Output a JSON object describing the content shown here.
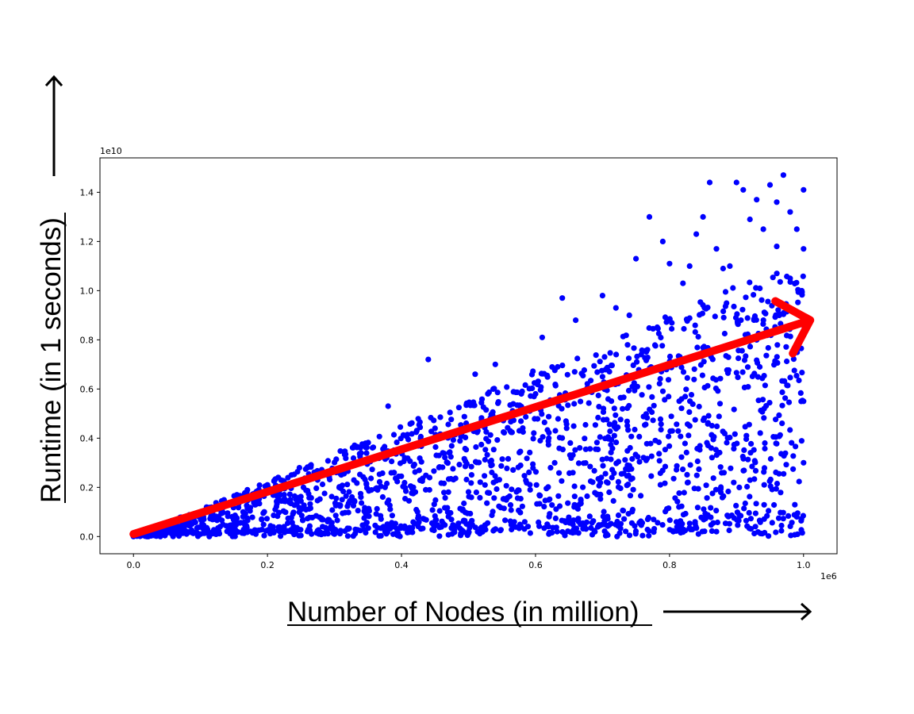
{
  "chart_data": {
    "type": "scatter",
    "title": "",
    "xlabel": "Number of Nodes (in million)",
    "ylabel": "Runtime (in 1 seconds)",
    "x_offset_label": "1e6",
    "y_offset_label": "1e10",
    "xlim": [
      -0.05,
      1.05
    ],
    "ylim": [
      -0.07,
      1.54
    ],
    "x_ticks": [
      "0.0",
      "0.2",
      "0.4",
      "0.6",
      "0.8",
      "1.0"
    ],
    "x_tick_values": [
      0.0,
      0.2,
      0.4,
      0.6,
      0.8,
      1.0
    ],
    "y_ticks": [
      "0.0",
      "0.2",
      "0.4",
      "0.6",
      "0.8",
      "1.0",
      "1.2",
      "1.4"
    ],
    "y_tick_values": [
      0.0,
      0.2,
      0.4,
      0.6,
      0.8,
      1.0,
      1.2,
      1.4
    ],
    "marker_color": "#0000ff",
    "trend_arrow": {
      "color": "#ff0000",
      "from": [
        0.0,
        0.01
      ],
      "to": [
        1.01,
        0.88
      ]
    },
    "grid": false,
    "x_axis_scale": "units of 1e6 nodes",
    "y_axis_scale": "units of 1e10",
    "points_note": "approx. 2000 scattered points; y spreads between ~0 and ~1.45 times x",
    "series": [
      {
        "values": [
          [
            0.44,
            0.72
          ],
          [
            0.38,
            0.53
          ],
          [
            0.26,
            0.28
          ],
          [
            0.17,
            0.19
          ],
          [
            0.2,
            0.21
          ],
          [
            0.51,
            0.66
          ],
          [
            0.54,
            0.7
          ],
          [
            0.58,
            0.59
          ],
          [
            0.61,
            0.81
          ],
          [
            0.64,
            0.97
          ],
          [
            0.66,
            0.88
          ],
          [
            0.7,
            0.98
          ],
          [
            0.72,
            0.93
          ],
          [
            0.74,
            0.9
          ],
          [
            0.75,
            1.13
          ],
          [
            0.77,
            1.3
          ],
          [
            0.79,
            1.2
          ],
          [
            0.8,
            1.11
          ],
          [
            0.82,
            1.03
          ],
          [
            0.84,
            1.23
          ],
          [
            0.85,
            1.3
          ],
          [
            0.86,
            1.44
          ],
          [
            0.87,
            1.17
          ],
          [
            0.89,
            1.1
          ],
          [
            0.9,
            1.44
          ],
          [
            0.91,
            1.41
          ],
          [
            0.92,
            1.29
          ],
          [
            0.93,
            1.37
          ],
          [
            0.94,
            1.25
          ],
          [
            0.95,
            1.43
          ],
          [
            0.96,
            1.36
          ],
          [
            0.97,
            1.47
          ],
          [
            0.98,
            1.32
          ],
          [
            0.99,
            1.25
          ],
          [
            1.0,
            1.41
          ],
          [
            0.98,
            1.05
          ],
          [
            1.0,
            1.17
          ],
          [
            0.96,
            1.18
          ],
          [
            0.88,
            1.09
          ],
          [
            0.83,
            1.1
          ],
          [
            0.45,
            0.44
          ],
          [
            0.6,
            0.58
          ],
          [
            0.7,
            0.65
          ],
          [
            0.85,
            0.75
          ],
          [
            0.93,
            0.8
          ],
          [
            1.0,
            0.55
          ],
          [
            1.0,
            0.3
          ],
          [
            0.99,
            0.08
          ],
          [
            0.87,
            0.02
          ],
          [
            0.5,
            0.02
          ],
          [
            0.3,
            0.01
          ],
          [
            0.1,
            0.01
          ],
          [
            0.02,
            0.0
          ],
          [
            0.0,
            0.0
          ]
        ]
      }
    ]
  }
}
